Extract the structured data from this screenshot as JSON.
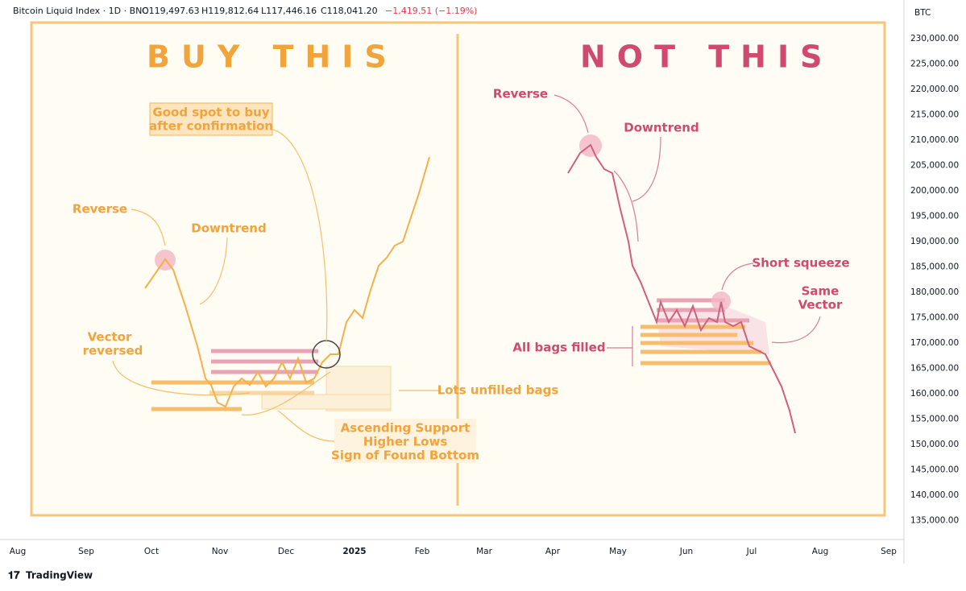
{
  "header": {
    "symbol": "Bitcoin Liquid Index · 1D · BNC",
    "open": "O119,497.63",
    "high": "H119,812.64",
    "low": "L117,446.16",
    "close": "C118,041.20",
    "change": "−1,419.51 (−1.19%)"
  },
  "axis": {
    "unit": "BTC",
    "price_labels": [
      "230,000.00",
      "225,000.00",
      "220,000.00",
      "215,000.00",
      "210,000.00",
      "205,000.00",
      "200,000.00",
      "195,000.00",
      "190,000.00",
      "185,000.00",
      "180,000.00",
      "175,000.00",
      "170,000.00",
      "165,000.00",
      "160,000.00",
      "155,000.00",
      "150,000.00",
      "145,000.00",
      "140,000.00",
      "135,000.00"
    ],
    "time_labels": [
      "Aug",
      "Sep",
      "Oct",
      "Nov",
      "Dec",
      "2025",
      "Feb",
      "Mar",
      "Apr",
      "May",
      "Jun",
      "Jul",
      "Aug",
      "Sep"
    ]
  },
  "left": {
    "title": "BUY THIS",
    "good_spot": [
      "Good spot to buy",
      "after confirmation"
    ],
    "reverse": "Reverse",
    "downtrend": "Downtrend",
    "vector": [
      "Vector",
      "reversed"
    ],
    "bags": "Lots unfilled bags",
    "support": [
      "Ascending Support",
      "Higher Lows",
      "Sign of Found Bottom"
    ]
  },
  "right": {
    "title": "NOT THIS",
    "reverse": "Reverse",
    "downtrend": "Downtrend",
    "squeeze": "Short squeeze",
    "same_vector": [
      "Same",
      "Vector"
    ],
    "bags": "All bags filled"
  },
  "footer": {
    "brand": "TradingView"
  }
}
